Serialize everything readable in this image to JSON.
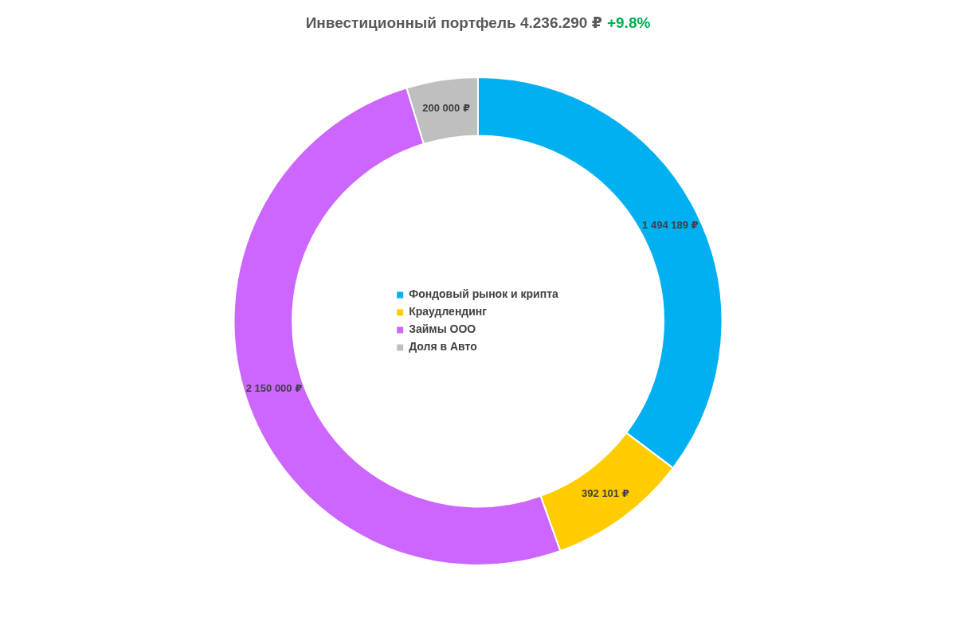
{
  "chart_data": {
    "type": "donut",
    "title": "Инвестиционный портфель 4.236.290 ₽",
    "annotations": [
      "+9.8%"
    ],
    "categories": [
      "Фондовый рынок и крипта",
      "Краудлендинг",
      "Займы ООО",
      "Доля в Авто"
    ],
    "values": [
      1494189,
      392101,
      2150000,
      200000
    ],
    "value_labels": [
      "1 494 189 ₽",
      "392 101 ₽",
      "2 150 000 ₽",
      "200 000 ₽"
    ],
    "colors": [
      "#00b0f0",
      "#ffcc00",
      "#cc66ff",
      "#bfbfbf"
    ],
    "legend": "center"
  }
}
